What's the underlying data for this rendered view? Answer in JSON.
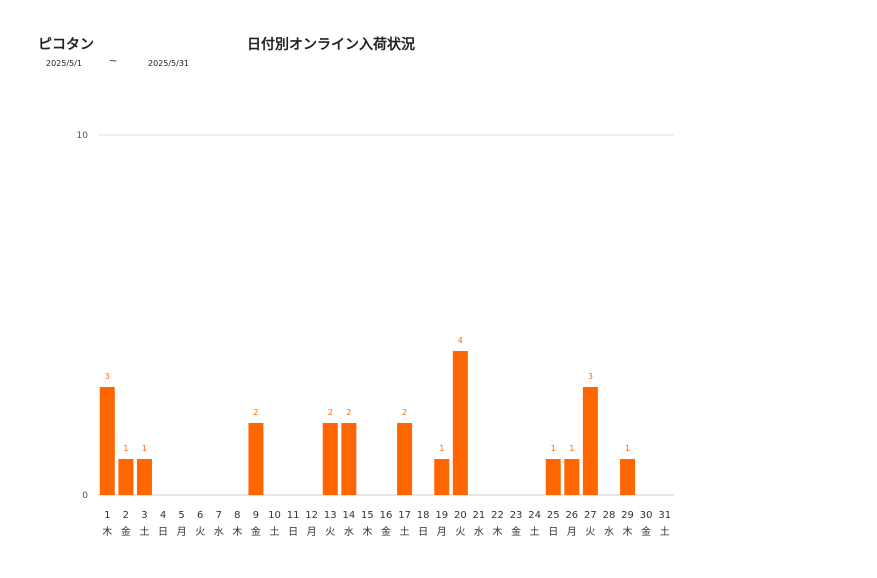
{
  "header": {
    "brand": "ピコタン",
    "title": "日付別オンライン入荷状況",
    "date_from": "2025/5/1",
    "date_separator": "~",
    "date_to": "2025/5/31"
  },
  "chart_data": {
    "type": "bar",
    "title": "日付別オンライン入荷状況",
    "categories": [
      "1",
      "2",
      "3",
      "4",
      "5",
      "6",
      "7",
      "8",
      "9",
      "10",
      "11",
      "12",
      "13",
      "14",
      "15",
      "16",
      "17",
      "18",
      "19",
      "20",
      "21",
      "22",
      "23",
      "24",
      "25",
      "26",
      "27",
      "28",
      "29",
      "30",
      "31"
    ],
    "weekdays": [
      "木",
      "金",
      "土",
      "日",
      "月",
      "火",
      "水",
      "木",
      "金",
      "土",
      "日",
      "月",
      "火",
      "水",
      "木",
      "金",
      "土",
      "日",
      "月",
      "火",
      "水",
      "木",
      "金",
      "土",
      "日",
      "月",
      "火",
      "水",
      "木",
      "金",
      "土"
    ],
    "values": [
      3,
      1,
      1,
      0,
      0,
      0,
      0,
      0,
      2,
      0,
      0,
      0,
      2,
      2,
      0,
      0,
      2,
      0,
      1,
      4,
      0,
      0,
      0,
      0,
      1,
      1,
      3,
      0,
      1,
      0,
      0
    ],
    "ylim": [
      0,
      10
    ],
    "yticks": [
      0,
      10
    ],
    "grid": true,
    "colors": {
      "bar": "#ff6600",
      "label": "#ff6600",
      "grid": "#e3e3e3",
      "axis": "#cccccc"
    }
  }
}
